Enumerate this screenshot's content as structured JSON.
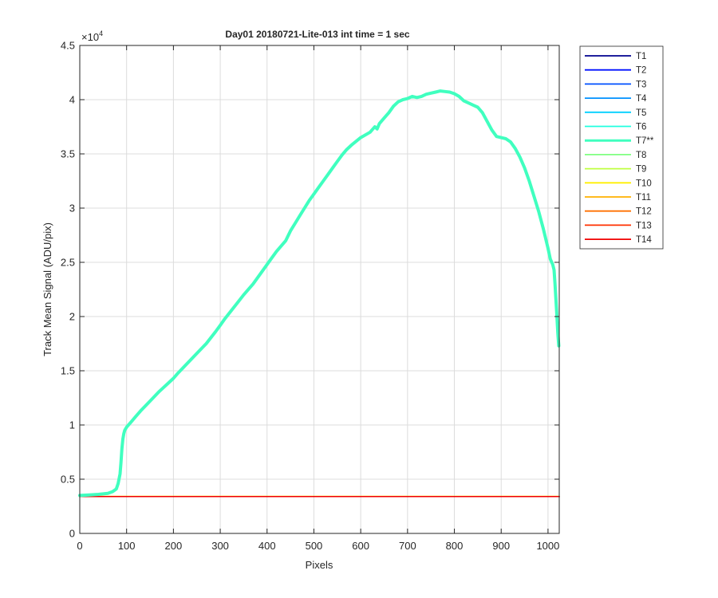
{
  "chart_data": {
    "type": "line",
    "title": "Day01 20180721-Lite-013 int time = 1 sec",
    "xlabel": "Pixels",
    "ylabel": "Track Mean Signal (ADU/pix)",
    "y_exponent_label": "×10",
    "y_exponent_power": "4",
    "xlim": [
      0,
      1024
    ],
    "ylim": [
      0,
      45000
    ],
    "xticks": [
      0,
      100,
      200,
      300,
      400,
      500,
      600,
      700,
      800,
      900,
      1000
    ],
    "xtick_labels": [
      "0",
      "100",
      "200",
      "300",
      "400",
      "500",
      "600",
      "700",
      "800",
      "900",
      "1000"
    ],
    "yticks": [
      0,
      5000,
      10000,
      15000,
      20000,
      25000,
      30000,
      35000,
      40000,
      45000
    ],
    "ytick_labels": [
      "0",
      "0.5",
      "1",
      "1.5",
      "2",
      "2.5",
      "3",
      "3.5",
      "4",
      "4.5"
    ],
    "grid": true,
    "legend_position": "outside-right",
    "series": [
      {
        "name": "T1",
        "color": "#00008f",
        "constant": 3400
      },
      {
        "name": "T2",
        "color": "#0010ff",
        "constant": 3400
      },
      {
        "name": "T3",
        "color": "#0050ff",
        "constant": 3400
      },
      {
        "name": "T4",
        "color": "#0090ff",
        "constant": 3400
      },
      {
        "name": "T5",
        "color": "#00d0ff",
        "constant": 3400
      },
      {
        "name": "T6",
        "color": "#20ffdf",
        "constant": 3400
      },
      {
        "name": "T7**",
        "color": "#40ffbf",
        "highlight": true,
        "x": [
          0,
          20,
          40,
          60,
          70,
          78,
          82,
          86,
          88,
          90,
          92,
          94,
          96,
          100,
          110,
          120,
          130,
          150,
          170,
          190,
          200,
          210,
          230,
          250,
          270,
          290,
          300,
          310,
          330,
          350,
          370,
          390,
          400,
          410,
          420,
          430,
          440,
          450,
          460,
          470,
          480,
          490,
          500,
          510,
          520,
          530,
          540,
          550,
          560,
          570,
          580,
          600,
          620,
          630,
          635,
          640,
          650,
          660,
          670,
          680,
          690,
          700,
          710,
          720,
          730,
          740,
          750,
          760,
          770,
          780,
          790,
          800,
          810,
          820,
          830,
          840,
          850,
          860,
          870,
          880,
          890,
          900,
          910,
          920,
          930,
          940,
          950,
          960,
          970,
          980,
          990,
          1000,
          1005,
          1010,
          1013,
          1015,
          1017,
          1019,
          1021,
          1023
        ],
        "y": [
          3500,
          3550,
          3600,
          3700,
          3850,
          4100,
          4600,
          5500,
          6500,
          7800,
          8700,
          9200,
          9500,
          9800,
          10300,
          10800,
          11300,
          12200,
          13100,
          13900,
          14300,
          14800,
          15700,
          16600,
          17500,
          18600,
          19200,
          19800,
          20900,
          22000,
          23000,
          24200,
          24800,
          25400,
          26000,
          26500,
          27000,
          27900,
          28600,
          29300,
          30000,
          30700,
          31300,
          31900,
          32500,
          33100,
          33700,
          34300,
          34900,
          35400,
          35800,
          36500,
          37000,
          37500,
          37300,
          37800,
          38300,
          38800,
          39400,
          39800,
          40000,
          40100,
          40300,
          40200,
          40300,
          40500,
          40600,
          40700,
          40800,
          40750,
          40700,
          40550,
          40300,
          39900,
          39700,
          39500,
          39300,
          38800,
          38000,
          37200,
          36600,
          36500,
          36400,
          36100,
          35500,
          34700,
          33700,
          32500,
          31100,
          29700,
          28100,
          26300,
          25300,
          24800,
          24300,
          23000,
          21500,
          20000,
          18500,
          17300
        ]
      },
      {
        "name": "T8",
        "color": "#7fff80",
        "constant": 3400
      },
      {
        "name": "T9",
        "color": "#bfff40",
        "constant": 3400
      },
      {
        "name": "T10",
        "color": "#ffef00",
        "constant": 3420
      },
      {
        "name": "T11",
        "color": "#ffb000",
        "constant": 3400
      },
      {
        "name": "T12",
        "color": "#ff7000",
        "constant": 3400
      },
      {
        "name": "T13",
        "color": "#ff3000",
        "constant": 3400
      },
      {
        "name": "T14",
        "color": "#f00000",
        "constant": 3400
      }
    ]
  }
}
